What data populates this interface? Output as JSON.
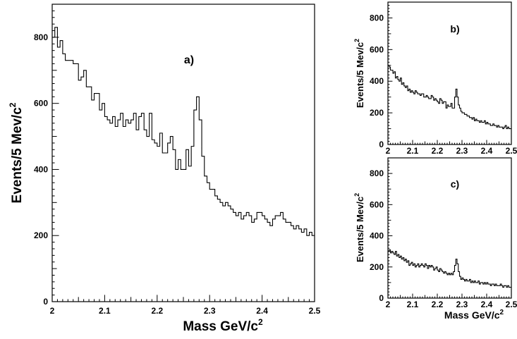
{
  "chart_data": [
    {
      "id": "a",
      "type": "histogram",
      "panel_label": "a)",
      "ylabel": "Events/5 Mev/c",
      "ylabel_sup": "2",
      "xlabel": "Mass GeV/c",
      "xlabel_sup": "2",
      "xlim": [
        2.0,
        2.5
      ],
      "ylim": [
        0,
        900
      ],
      "xticks": [
        2,
        2.1,
        2.2,
        2.3,
        2.4,
        2.5
      ],
      "xtick_labels": [
        "2",
        "2.1",
        "2.2",
        "2.3",
        "2.4",
        "2.5"
      ],
      "yticks": [
        0,
        200,
        400,
        600,
        800
      ],
      "ytick_labels": [
        "0",
        "200",
        "400",
        "600",
        "800"
      ],
      "bin_start": 2.0,
      "bin_width": 0.005,
      "values": [
        800,
        830,
        770,
        790,
        750,
        730,
        730,
        730,
        720,
        720,
        670,
        680,
        700,
        650,
        650,
        610,
        630,
        630,
        580,
        600,
        560,
        550,
        540,
        560,
        530,
        550,
        570,
        530,
        550,
        540,
        550,
        570,
        520,
        560,
        570,
        520,
        500,
        570,
        490,
        480,
        470,
        510,
        450,
        450,
        480,
        500,
        460,
        400,
        430,
        400,
        400,
        460,
        410,
        470,
        580,
        620,
        550,
        440,
        380,
        360,
        340,
        340,
        320,
        310,
        300,
        290,
        300,
        290,
        280,
        270,
        260,
        270,
        250,
        260,
        270,
        260,
        240,
        250,
        270,
        270,
        260,
        250,
        240,
        230,
        250,
        260,
        260,
        270,
        250,
        240,
        240,
        230,
        220,
        230,
        220,
        210,
        220,
        200,
        210,
        200
      ]
    },
    {
      "id": "b",
      "type": "histogram",
      "panel_label": "b)",
      "ylabel": "Events/5 Mev/c",
      "ylabel_sup": "2",
      "xlabel": "",
      "xlim": [
        2.0,
        2.5
      ],
      "ylim": [
        0,
        900
      ],
      "xticks": [
        2,
        2.1,
        2.2,
        2.3,
        2.4,
        2.5
      ],
      "xtick_labels": [
        "2",
        "2.1",
        "2.2",
        "2.3",
        "2.4",
        "2.5"
      ],
      "yticks": [
        0,
        200,
        400,
        600,
        800
      ],
      "ytick_labels": [
        "0",
        "200",
        "400",
        "600",
        "800"
      ],
      "bin_start": 2.0,
      "bin_width": 0.005,
      "values": [
        500,
        490,
        470,
        470,
        450,
        460,
        420,
        430,
        410,
        400,
        420,
        380,
        390,
        370,
        360,
        370,
        340,
        350,
        330,
        340,
        330,
        320,
        340,
        330,
        320,
        320,
        310,
        320,
        320,
        300,
        300,
        310,
        300,
        290,
        290,
        310,
        300,
        280,
        290,
        280,
        270,
        260,
        290,
        280,
        260,
        270,
        270,
        230,
        250,
        240,
        240,
        260,
        230,
        230,
        300,
        350,
        300,
        250,
        230,
        210,
        200,
        200,
        190,
        190,
        180,
        180,
        170,
        170,
        160,
        170,
        150,
        160,
        150,
        150,
        140,
        150,
        140,
        140,
        150,
        130,
        140,
        130,
        130,
        120,
        120,
        130,
        120,
        120,
        110,
        120,
        110,
        110,
        110,
        100,
        110,
        120,
        100,
        110,
        100,
        100
      ]
    },
    {
      "id": "c",
      "type": "histogram",
      "panel_label": "c)",
      "ylabel": "Events/5 Mev/c",
      "ylabel_sup": "2",
      "xlabel": "Mass GeV/c",
      "xlabel_sup": "2",
      "xlim": [
        2.0,
        2.5
      ],
      "ylim": [
        0,
        900
      ],
      "xticks": [
        2,
        2.1,
        2.2,
        2.3,
        2.4,
        2.5
      ],
      "xtick_labels": [
        "2",
        "2.1",
        "2.2",
        "2.3",
        "2.4",
        "2.5"
      ],
      "yticks": [
        0,
        200,
        400,
        600,
        800
      ],
      "ytick_labels": [
        "0",
        "200",
        "400",
        "600",
        "800"
      ],
      "bin_start": 2.0,
      "bin_width": 0.005,
      "values": [
        300,
        310,
        290,
        300,
        290,
        280,
        300,
        270,
        280,
        260,
        270,
        250,
        260,
        240,
        250,
        230,
        240,
        210,
        220,
        230,
        210,
        220,
        200,
        210,
        220,
        200,
        210,
        220,
        210,
        200,
        220,
        210,
        190,
        210,
        200,
        210,
        200,
        180,
        190,
        200,
        180,
        170,
        190,
        180,
        170,
        160,
        170,
        160,
        150,
        160,
        150,
        160,
        150,
        170,
        210,
        250,
        220,
        170,
        140,
        120,
        130,
        120,
        110,
        120,
        110,
        110,
        120,
        100,
        110,
        100,
        110,
        100,
        100,
        110,
        90,
        100,
        100,
        90,
        100,
        90,
        100,
        90,
        90,
        80,
        90,
        90,
        80,
        90,
        80,
        80,
        80,
        90,
        80,
        70,
        80,
        80,
        70,
        80,
        70,
        70
      ]
    }
  ]
}
